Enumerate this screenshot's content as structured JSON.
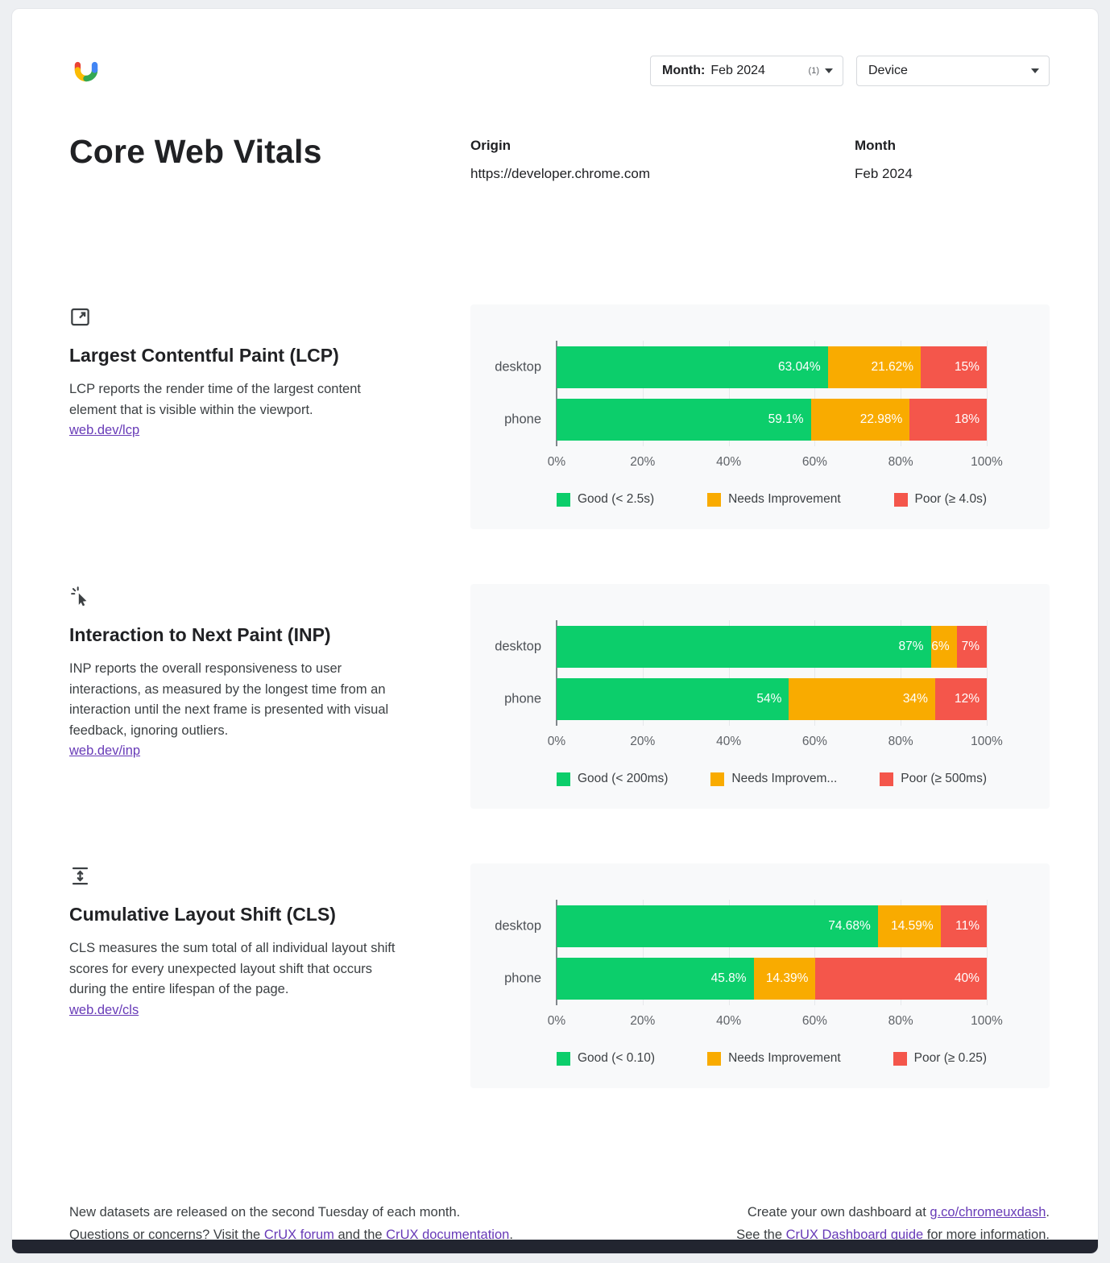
{
  "header": {
    "month_dropdown": {
      "label": "Month:",
      "value": "Feb 2024",
      "count": "(1)"
    },
    "device_dropdown": {
      "label": "Device"
    }
  },
  "title": "Core Web Vitals",
  "meta": {
    "origin_label": "Origin",
    "origin_value": "https://developer.chrome.com",
    "month_label": "Month",
    "month_value": "Feb 2024"
  },
  "colors": {
    "good": "#0cce6b",
    "needs_improvement": "#f9ab00",
    "poor": "#f4564b"
  },
  "sections": [
    {
      "icon": "lcp-icon",
      "heading": "Largest Contentful Paint (LCP)",
      "description": "LCP reports the render time of the largest content element that is visible within the viewport.",
      "link": "web.dev/lcp"
    },
    {
      "icon": "inp-icon",
      "heading": "Interaction to Next Paint (INP)",
      "description": "INP reports the overall responsiveness to user interactions, as measured by the longest time from an interaction until the next frame is presented with visual feedback, ignoring outliers.",
      "link": "web.dev/inp"
    },
    {
      "icon": "cls-icon",
      "heading": "Cumulative Layout Shift (CLS)",
      "description": "CLS measures the sum total of all individual layout shift scores for every unexpected layout shift that occurs during the entire lifespan of the page.",
      "link": "web.dev/cls"
    }
  ],
  "chart_data": [
    {
      "type": "bar",
      "metric": "LCP",
      "orientation": "horizontal-stacked",
      "categories": [
        "desktop",
        "phone"
      ],
      "series": [
        {
          "name": "Good (< 2.5s)",
          "key": "good",
          "values": [
            63.04,
            59.1
          ],
          "labels": [
            "63.04%",
            "59.1%"
          ]
        },
        {
          "name": "Needs Improvement",
          "key": "needs_improvement",
          "values": [
            21.62,
            22.98
          ],
          "labels": [
            "21.62%",
            "22.98%"
          ]
        },
        {
          "name": "Poor (≥ 4.0s)",
          "key": "poor",
          "values": [
            15.34,
            17.92
          ],
          "labels": [
            "15%",
            "18%"
          ]
        }
      ],
      "xticks": [
        "0%",
        "20%",
        "40%",
        "60%",
        "80%",
        "100%"
      ],
      "xlim": [
        0,
        100
      ],
      "grid": true,
      "legend_position": "bottom"
    },
    {
      "type": "bar",
      "metric": "INP",
      "orientation": "horizontal-stacked",
      "categories": [
        "desktop",
        "phone"
      ],
      "series": [
        {
          "name": "Good (< 200ms)",
          "key": "good",
          "values": [
            87,
            54
          ],
          "labels": [
            "87%",
            "54%"
          ]
        },
        {
          "name": "Needs Improvem...",
          "key": "needs_improvement",
          "values": [
            6,
            34
          ],
          "labels": [
            "6%",
            "34%"
          ]
        },
        {
          "name": "Poor (≥ 500ms)",
          "key": "poor",
          "values": [
            7,
            12
          ],
          "labels": [
            "7%",
            "12%"
          ]
        }
      ],
      "xticks": [
        "0%",
        "20%",
        "40%",
        "60%",
        "80%",
        "100%"
      ],
      "xlim": [
        0,
        100
      ],
      "grid": true,
      "legend_position": "bottom"
    },
    {
      "type": "bar",
      "metric": "CLS",
      "orientation": "horizontal-stacked",
      "categories": [
        "desktop",
        "phone"
      ],
      "series": [
        {
          "name": "Good (< 0.10)",
          "key": "good",
          "values": [
            74.68,
            45.8
          ],
          "labels": [
            "74.68%",
            "45.8%"
          ]
        },
        {
          "name": "Needs Improvement",
          "key": "needs_improvement",
          "values": [
            14.59,
            14.39
          ],
          "labels": [
            "14.59%",
            "14.39%"
          ]
        },
        {
          "name": "Poor (≥ 0.25)",
          "key": "poor",
          "values": [
            10.73,
            39.81
          ],
          "labels": [
            "11%",
            "40%"
          ]
        }
      ],
      "xticks": [
        "0%",
        "20%",
        "40%",
        "60%",
        "80%",
        "100%"
      ],
      "xlim": [
        0,
        100
      ],
      "grid": true,
      "legend_position": "bottom"
    }
  ],
  "footer": {
    "left_line1": "New datasets are released on the second Tuesday of each month.",
    "left_line2_pre": "Questions or concerns? Visit the ",
    "left_line2_link1": "CrUX forum",
    "left_line2_mid": " and the ",
    "left_line2_link2": "CrUX documentation",
    "left_line2_post": ".",
    "right_line1_pre": "Create your own dashboard at ",
    "right_line1_link": "g.co/chromeuxdash",
    "right_line1_post": ".",
    "right_line2_pre": "See the ",
    "right_line2_link": "CrUX Dashboard guide",
    "right_line2_post": " for more information."
  }
}
